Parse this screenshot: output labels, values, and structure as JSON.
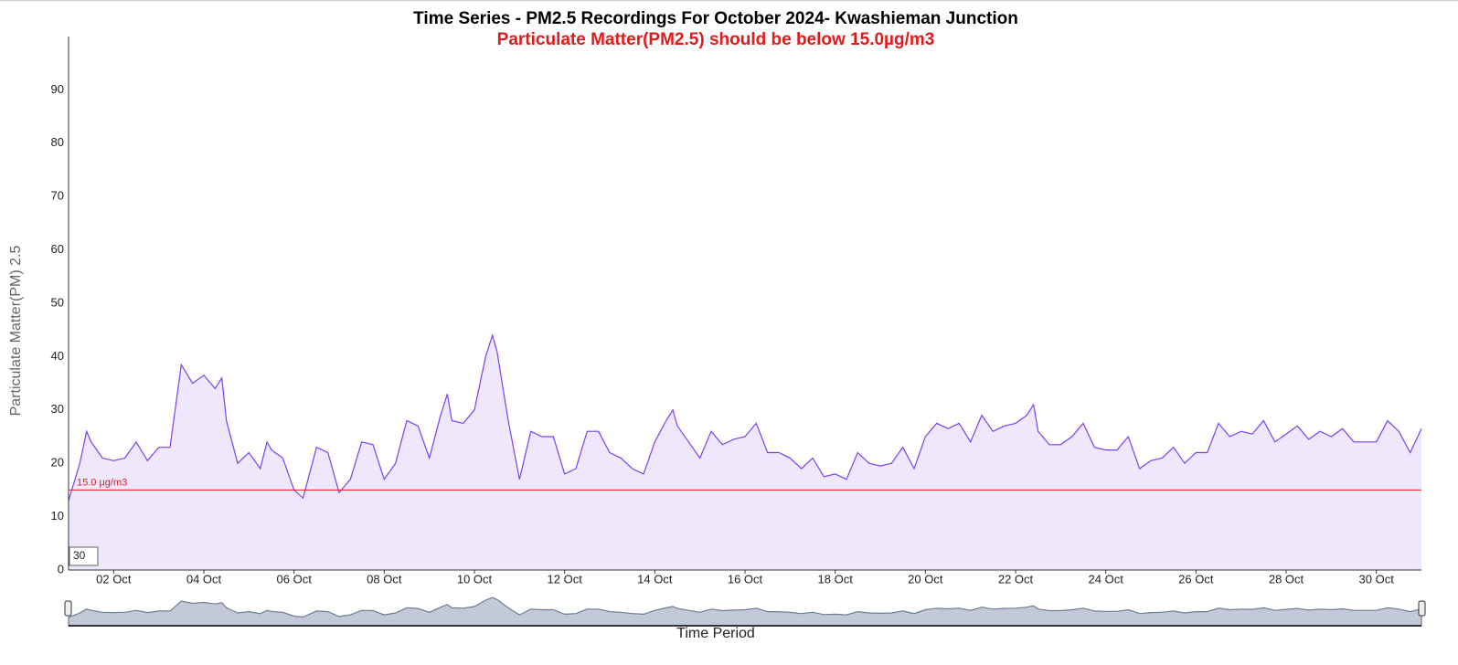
{
  "chart_data": {
    "type": "area",
    "title": "Time Series - PM2.5 Recordings For October 2024- Kwashieman Junction",
    "subtitle": "Particulate Matter(PM2.5) should be below 15.0µg/m3",
    "y_label": "Particulate Matter(PM) 2.5",
    "x_label": "Time Period",
    "x": [
      1.0,
      1.25,
      1.4,
      1.5,
      1.75,
      2.0,
      2.25,
      2.5,
      2.75,
      3.0,
      3.25,
      3.5,
      3.75,
      4.0,
      4.25,
      4.4,
      4.5,
      4.75,
      5.0,
      5.25,
      5.4,
      5.5,
      5.75,
      6.0,
      6.2,
      6.5,
      6.75,
      7.0,
      7.25,
      7.5,
      7.75,
      8.0,
      8.25,
      8.5,
      8.75,
      9.0,
      9.25,
      9.4,
      9.5,
      9.75,
      10.0,
      10.25,
      10.4,
      10.5,
      10.75,
      11.0,
      11.25,
      11.5,
      11.75,
      12.0,
      12.25,
      12.5,
      12.75,
      13.0,
      13.25,
      13.5,
      13.75,
      14.0,
      14.25,
      14.4,
      14.5,
      14.75,
      15.0,
      15.25,
      15.5,
      15.75,
      16.0,
      16.25,
      16.5,
      16.75,
      17.0,
      17.25,
      17.5,
      17.75,
      18.0,
      18.25,
      18.5,
      18.75,
      19.0,
      19.25,
      19.5,
      19.75,
      20.0,
      20.25,
      20.5,
      20.75,
      21.0,
      21.25,
      21.5,
      21.75,
      22.0,
      22.25,
      22.4,
      22.5,
      22.75,
      23.0,
      23.25,
      23.5,
      23.75,
      24.0,
      24.25,
      24.5,
      24.75,
      25.0,
      25.25,
      25.5,
      25.75,
      26.0,
      26.25,
      26.5,
      26.75,
      27.0,
      27.25,
      27.5,
      27.75,
      28.0,
      28.25,
      28.5,
      28.75,
      29.0,
      29.25,
      29.5,
      29.75,
      30.0,
      30.25,
      30.5,
      30.75,
      31.0
    ],
    "series": [
      {
        "name": "PM2.5",
        "color": "#7b3ff2",
        "fill": "#efe8fd",
        "values": [
          13,
          20,
          26,
          24,
          21,
          20.5,
          21,
          24,
          20.5,
          23,
          23,
          38.5,
          35,
          36.5,
          34,
          36,
          28,
          20,
          22,
          19,
          24,
          22.5,
          21,
          15,
          13.5,
          23,
          22,
          14.5,
          17,
          24,
          23.5,
          17,
          20,
          28,
          27,
          21,
          29,
          33,
          28,
          27.5,
          30,
          40,
          44,
          41,
          28,
          17,
          26,
          25,
          25,
          18,
          19,
          26,
          26,
          22,
          21,
          19,
          18,
          24,
          28,
          30,
          27,
          24,
          21,
          26,
          23.5,
          24.5,
          25,
          27.5,
          22,
          22,
          21,
          19,
          21,
          17.5,
          18,
          17,
          22,
          20,
          19.5,
          20,
          23,
          19,
          25,
          27.5,
          26.5,
          27.5,
          24,
          29,
          26,
          27,
          27.5,
          29,
          31,
          26,
          23.5,
          23.5,
          25,
          27.5,
          23,
          22.5,
          22.5,
          25,
          19,
          20.5,
          21,
          23,
          20,
          22,
          22,
          27.5,
          25,
          26,
          25.5,
          28,
          24,
          25.5,
          27,
          24.5,
          26,
          25,
          26.5,
          24,
          24,
          24,
          28,
          26,
          22,
          26.5
        ]
      }
    ],
    "xlim": [
      1,
      31
    ],
    "xticks": [
      {
        "value": 2,
        "label": "02 Oct"
      },
      {
        "value": 4,
        "label": "04 Oct"
      },
      {
        "value": 6,
        "label": "06 Oct"
      },
      {
        "value": 8,
        "label": "08 Oct"
      },
      {
        "value": 10,
        "label": "10 Oct"
      },
      {
        "value": 12,
        "label": "12 Oct"
      },
      {
        "value": 14,
        "label": "14 Oct"
      },
      {
        "value": 16,
        "label": "16 Oct"
      },
      {
        "value": 18,
        "label": "18 Oct"
      },
      {
        "value": 20,
        "label": "20 Oct"
      },
      {
        "value": 22,
        "label": "22 Oct"
      },
      {
        "value": 24,
        "label": "24 Oct"
      },
      {
        "value": 26,
        "label": "26 Oct"
      },
      {
        "value": 28,
        "label": "28 Oct"
      },
      {
        "value": 30,
        "label": "30 Oct"
      }
    ],
    "ylim": [
      0,
      100
    ],
    "yticks": [
      0,
      10,
      20,
      30,
      40,
      50,
      60,
      70,
      80,
      90
    ],
    "threshold": {
      "value": 15,
      "label": "15.0 µg/m3",
      "color": "#e31a1c"
    }
  },
  "zoom_input": "30"
}
